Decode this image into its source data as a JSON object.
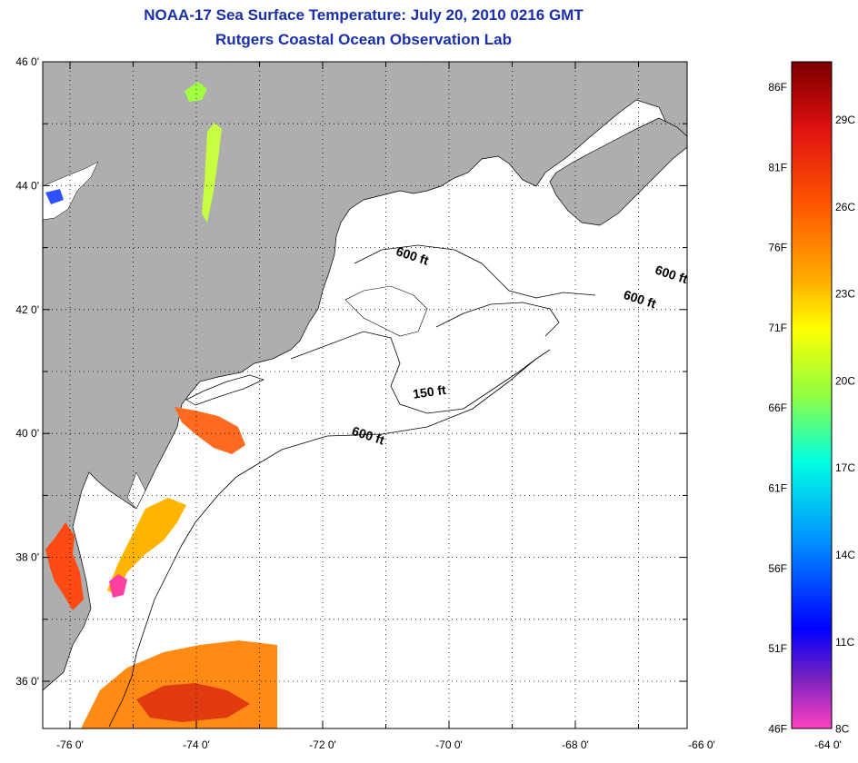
{
  "title": "NOAA-17 Sea Surface Temperature:  July 20, 2010 0216 GMT",
  "subtitle": "Rutgers Coastal Ocean Observation Lab",
  "map": {
    "lat_ticks": [
      {
        "label": "46 0'",
        "lat": 46
      },
      {
        "label": "44 0'",
        "lat": 44
      },
      {
        "label": "42 0'",
        "lat": 42
      },
      {
        "label": "40 0'",
        "lat": 40
      },
      {
        "label": "38 0'",
        "lat": 38
      },
      {
        "label": "36 0'",
        "lat": 36
      }
    ],
    "lon_ticks": [
      {
        "label": "-76 0'",
        "lon": -76
      },
      {
        "label": "-74 0'",
        "lon": -74
      },
      {
        "label": "-72 0'",
        "lon": -72
      },
      {
        "label": "-70 0'",
        "lon": -70
      },
      {
        "label": "-68 0'",
        "lon": -68
      },
      {
        "label": "-66 0'",
        "lon": -66
      },
      {
        "label": "-64 0'",
        "lon": -64
      }
    ],
    "isobath_labels": [
      {
        "text": "600 ft",
        "lon": -70.6,
        "lat": 42.8
      },
      {
        "text": "600 ft",
        "lon": -66.5,
        "lat": 42.5
      },
      {
        "text": "600 ft",
        "lon": -67.0,
        "lat": 42.1
      },
      {
        "text": "150 ft",
        "lon": -70.3,
        "lat": 40.6
      },
      {
        "text": "600 ft",
        "lon": -71.3,
        "lat": 39.9
      }
    ],
    "colors": {
      "land": "#aeaeae",
      "ocean": "#ffffff",
      "contour": "#000000"
    }
  },
  "colorbar": {
    "fahrenheit_labels": [
      "86F",
      "81F",
      "76F",
      "71F",
      "66F",
      "61F",
      "56F",
      "51F",
      "46F"
    ],
    "celsius_labels": [
      "29C",
      "26C",
      "23C",
      "20C",
      "17C",
      "14C",
      "11C",
      "8C"
    ]
  }
}
